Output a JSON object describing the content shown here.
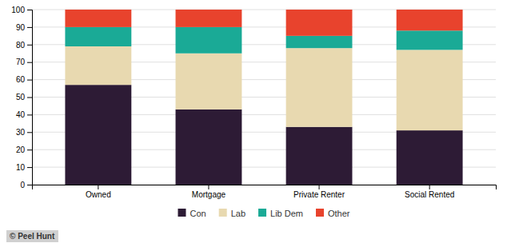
{
  "chart_data": {
    "type": "bar",
    "stacked": true,
    "categories": [
      "Owned",
      "Mortgage",
      "Private Renter",
      "Social Rented"
    ],
    "series": [
      {
        "name": "Con",
        "color": "#2d1b35",
        "values": [
          57,
          43,
          33,
          31
        ]
      },
      {
        "name": "Lab",
        "color": "#e8d9b0",
        "values": [
          22,
          32,
          45,
          46
        ]
      },
      {
        "name": "Lib Dem",
        "color": "#1aaa96",
        "values": [
          11,
          15,
          7,
          11
        ]
      },
      {
        "name": "Other",
        "color": "#e8432d",
        "values": [
          10,
          10,
          15,
          12
        ]
      }
    ],
    "ylim": [
      0,
      100
    ],
    "yticks": [
      0,
      10,
      20,
      30,
      40,
      50,
      60,
      70,
      80,
      90,
      100
    ],
    "grid": true,
    "legend": "bottom",
    "annotations": [
      "© Peel Hunt"
    ]
  }
}
